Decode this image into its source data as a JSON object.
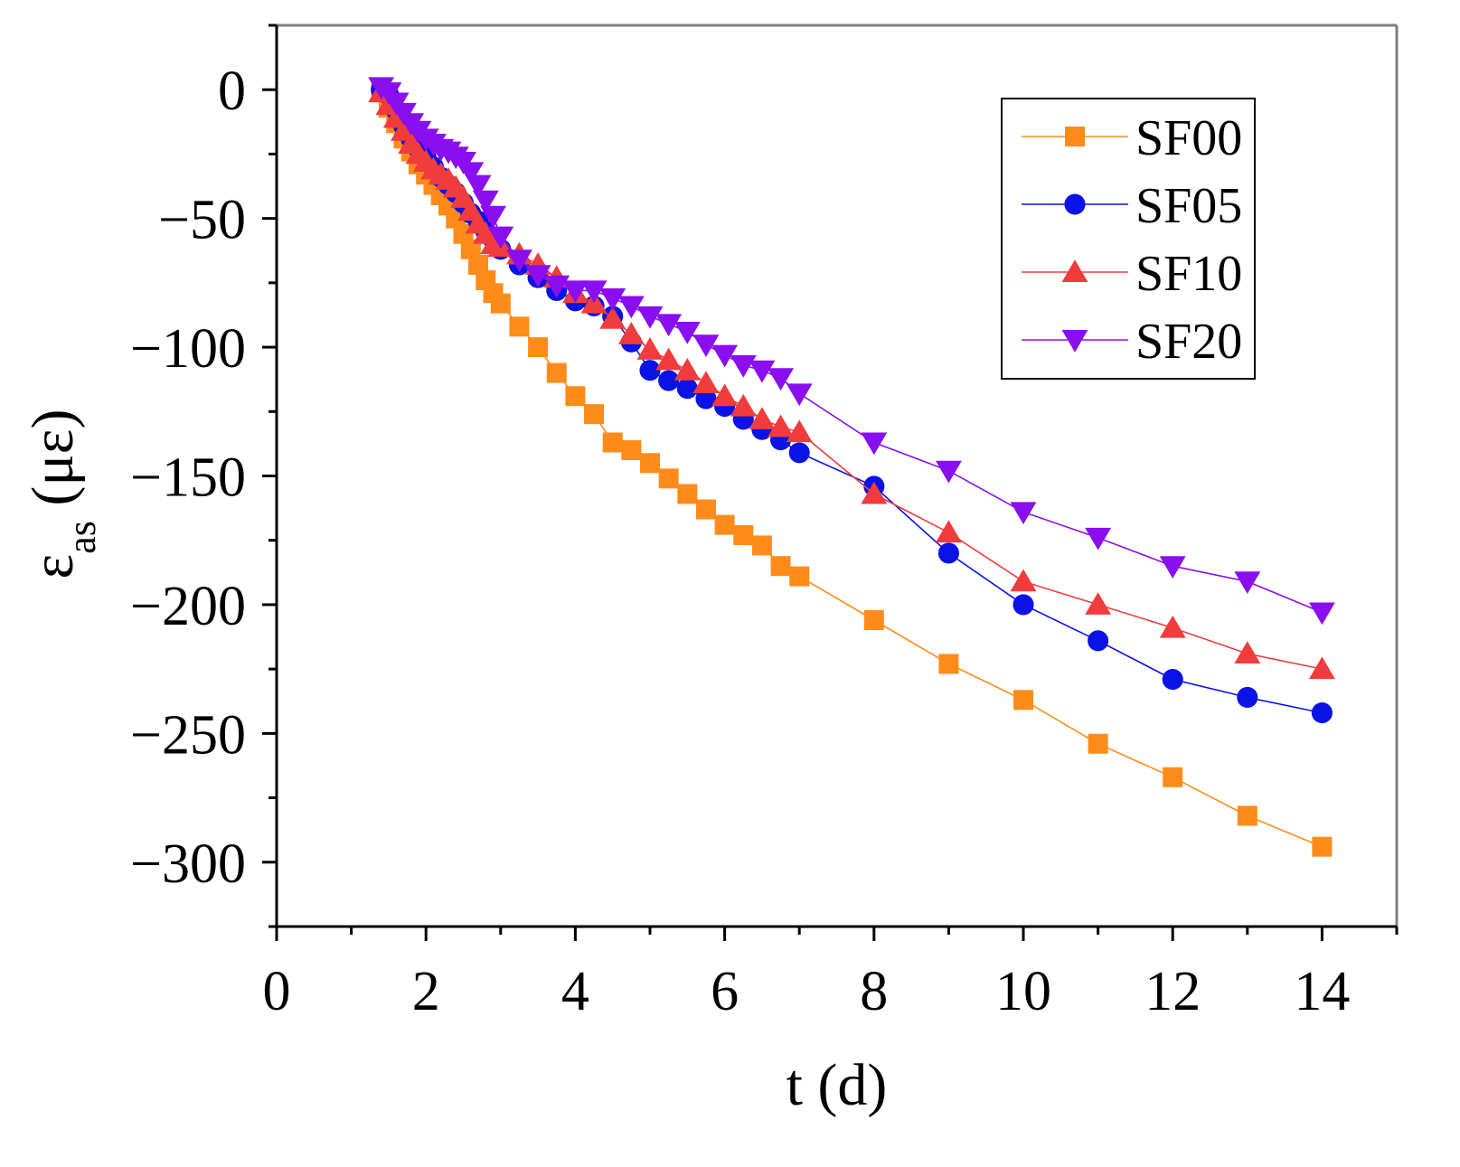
{
  "chart_data": {
    "type": "line",
    "title": "",
    "xlabel": "t (d)",
    "ylabel": {
      "main": "ε",
      "sub": "as",
      "unit": " (με)"
    },
    "xlim": [
      0,
      15
    ],
    "ylim": [
      -325,
      25
    ],
    "x_ticks": [
      0,
      2,
      4,
      6,
      8,
      10,
      12,
      14
    ],
    "x_tick_labels": [
      "0",
      "2",
      "4",
      "6",
      "8",
      "10",
      "12",
      "14"
    ],
    "y_ticks": [
      0,
      -50,
      -100,
      -150,
      -200,
      -250,
      -300
    ],
    "y_tick_labels": [
      "0",
      "−50",
      "−100",
      "−150",
      "−200",
      "−250",
      "−300"
    ],
    "grid": false,
    "legend_position": "top-right",
    "series": [
      {
        "name": "SF00",
        "color": "#ff8c1a",
        "marker": "square",
        "x": [
          1.4,
          1.5,
          1.6,
          1.7,
          1.8,
          1.9,
          2.0,
          2.1,
          2.2,
          2.3,
          2.4,
          2.5,
          2.6,
          2.7,
          2.8,
          2.9,
          3.0,
          3.25,
          3.5,
          3.75,
          4.0,
          4.25,
          4.5,
          4.75,
          5.0,
          5.25,
          5.5,
          5.75,
          6.0,
          6.25,
          6.5,
          6.75,
          7,
          8,
          9,
          10,
          11,
          12,
          13,
          14
        ],
        "y": [
          -1,
          -7,
          -13,
          -19,
          -24,
          -29,
          -33,
          -37,
          -41,
          -45,
          -50,
          -56,
          -62,
          -68,
          -74,
          -79,
          -83,
          -92,
          -100,
          -110,
          -119,
          -126,
          -137,
          -140,
          -145,
          -151,
          -157,
          -163,
          -169,
          -173,
          -177,
          -185,
          -189,
          -206,
          -223,
          -237,
          -254,
          -267,
          -282,
          -294
        ]
      },
      {
        "name": "SF05",
        "color": "#0a12e6",
        "marker": "circle",
        "x": [
          1.4,
          1.5,
          1.6,
          1.7,
          1.8,
          1.9,
          2.0,
          2.1,
          2.2,
          2.3,
          2.4,
          2.5,
          2.6,
          2.7,
          2.8,
          2.9,
          3.0,
          3.25,
          3.5,
          3.75,
          4.0,
          4.25,
          4.5,
          4.75,
          5.0,
          5.25,
          5.5,
          5.75,
          6.0,
          6.25,
          6.5,
          6.75,
          7,
          8,
          9,
          10,
          11,
          12,
          13,
          14
        ],
        "y": [
          0,
          -2,
          -8,
          -14,
          -19,
          -23,
          -26,
          -30,
          -34,
          -37,
          -40,
          -44,
          -48,
          -51,
          -55,
          -58,
          -62,
          -68,
          -73,
          -78,
          -82,
          -84,
          -88,
          -98,
          -109,
          -113,
          -116,
          -120,
          -123,
          -128,
          -132,
          -136,
          -141,
          -154,
          -180,
          -200,
          -214,
          -229,
          -236,
          -242
        ]
      },
      {
        "name": "SF10",
        "color": "#f03c3c",
        "marker": "triangle-up",
        "x": [
          1.4,
          1.5,
          1.6,
          1.7,
          1.8,
          1.9,
          2.0,
          2.1,
          2.2,
          2.3,
          2.4,
          2.5,
          2.6,
          2.7,
          2.8,
          2.9,
          3.0,
          3.25,
          3.5,
          3.75,
          4.0,
          4.25,
          4.5,
          4.75,
          5.0,
          5.25,
          5.5,
          5.75,
          6.0,
          6.25,
          6.5,
          6.75,
          7,
          8,
          9,
          10,
          11,
          12,
          13,
          14
        ],
        "y": [
          -1,
          -6,
          -11,
          -16,
          -21,
          -25,
          -28,
          -31,
          -33,
          -35,
          -38,
          -42,
          -47,
          -52,
          -56,
          -60,
          -61,
          -64,
          -68,
          -73,
          -79,
          -83,
          -89,
          -95,
          -101,
          -105,
          -109,
          -114,
          -119,
          -123,
          -128,
          -131,
          -133,
          -157,
          -172,
          -191,
          -200,
          -209,
          -219,
          -225
        ]
      },
      {
        "name": "SF20",
        "color": "#8a0ef0",
        "marker": "triangle-down",
        "x": [
          1.4,
          1.5,
          1.6,
          1.7,
          1.8,
          1.9,
          2.0,
          2.1,
          2.2,
          2.3,
          2.4,
          2.5,
          2.6,
          2.7,
          2.8,
          2.9,
          3.0,
          3.25,
          3.5,
          3.75,
          4.0,
          4.25,
          4.5,
          4.75,
          5.0,
          5.25,
          5.5,
          5.75,
          6.0,
          6.25,
          6.5,
          6.75,
          7,
          8,
          9,
          10,
          11,
          12,
          13,
          14
        ],
        "y": [
          1,
          -1,
          -5,
          -9,
          -13,
          -16,
          -19,
          -21,
          -23,
          -24,
          -26,
          -28,
          -32,
          -37,
          -43,
          -49,
          -57,
          -66,
          -72,
          -76,
          -78,
          -78,
          -81,
          -84,
          -88,
          -91,
          -94,
          -99,
          -103,
          -107,
          -109,
          -112,
          -118,
          -137,
          -148,
          -164,
          -174,
          -185,
          -191,
          -203
        ]
      }
    ]
  }
}
